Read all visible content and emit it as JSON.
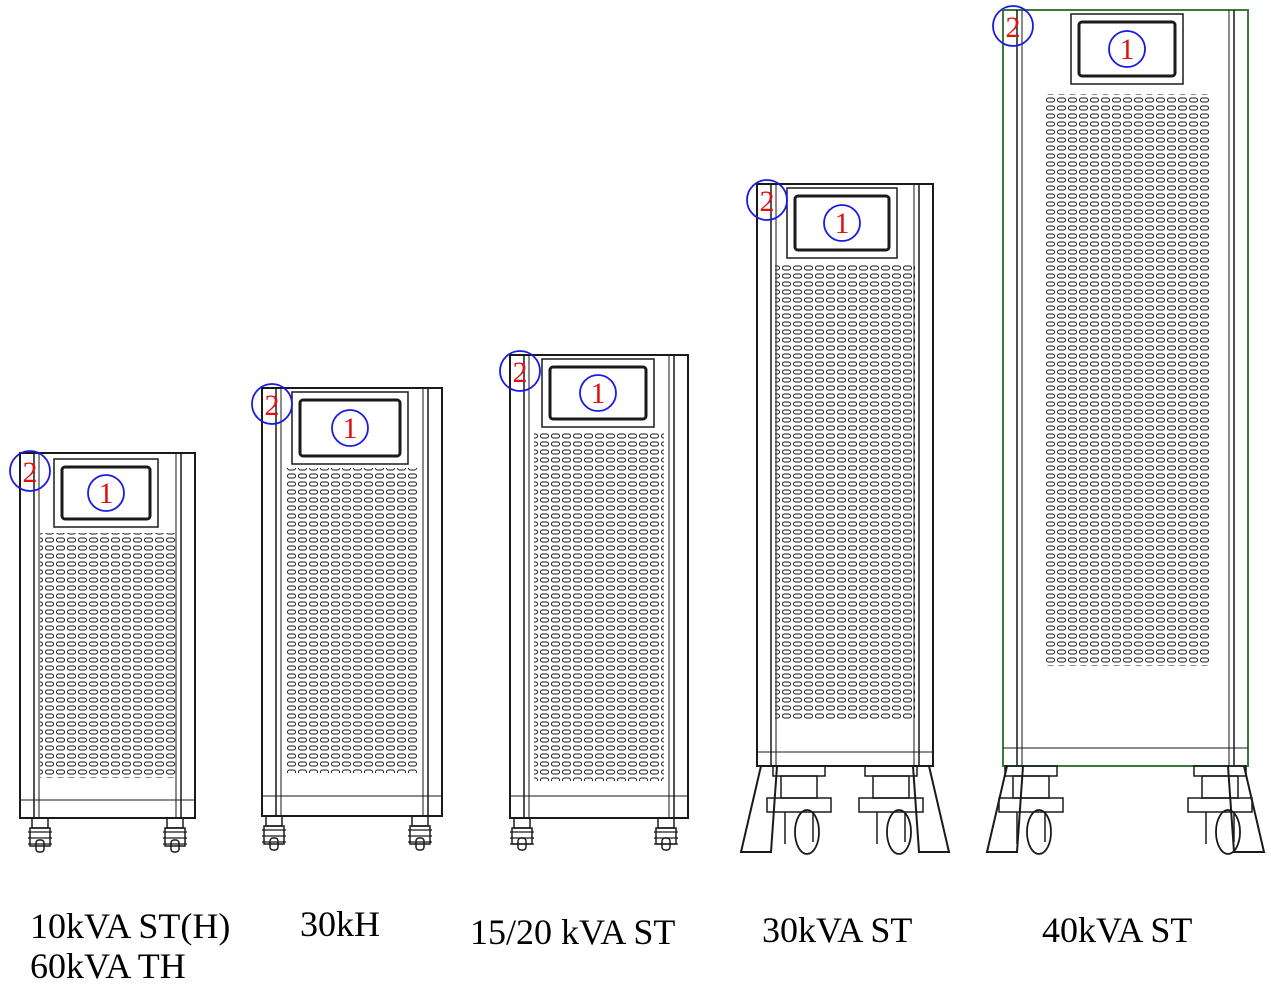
{
  "callouts": {
    "display": "1",
    "indicator": "2"
  },
  "cabinets": [
    {
      "id": "cab1",
      "label_line1": "10kVA ST(H)",
      "label_line2": "60kVA TH"
    },
    {
      "id": "cab2",
      "label_line1": "30kH"
    },
    {
      "id": "cab3",
      "label_line1": "15/20 kVA ST"
    },
    {
      "id": "cab4",
      "label_line1": "30kVA ST"
    },
    {
      "id": "cab5",
      "label_line1": "40kVA ST"
    }
  ],
  "colors": {
    "line": "#1a1a1a",
    "callout_text": "#e01010",
    "callout_circle": "#1a1ae6",
    "outline_accent": "#3a7a3a"
  }
}
